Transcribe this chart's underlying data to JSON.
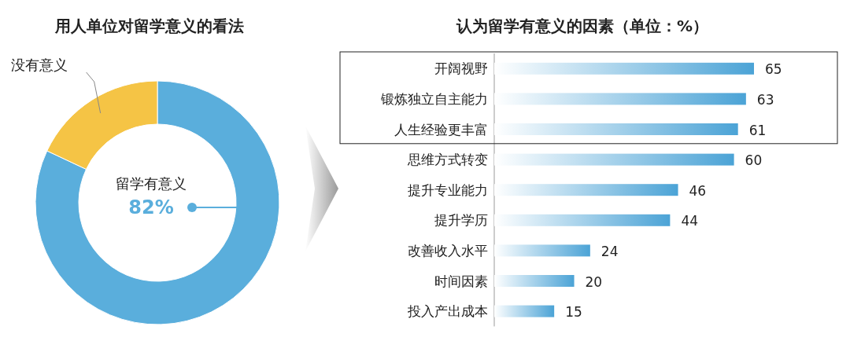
{
  "chart_data": [
    {
      "type": "donut",
      "title": "用人单位对留学意义的看法",
      "categories": [
        "留学有意义",
        "没有意义"
      ],
      "values": [
        82,
        18
      ],
      "colors": [
        "#5aaedc",
        "#f5c445"
      ],
      "value_labels": [
        "82%",
        null
      ]
    },
    {
      "type": "bar",
      "orientation": "horizontal",
      "title": "认为留学有意义的因素（单位：%）",
      "categories": [
        "开阔视野",
        "锻炼独立自主能力",
        "人生经验更丰富",
        "思维方式转变",
        "提升专业能力",
        "提升学历",
        "改善收入水平",
        "时间因素",
        "投入产出成本"
      ],
      "values": [
        65,
        63,
        61,
        60,
        46,
        44,
        24,
        20,
        15
      ],
      "color": "#4ba3d6",
      "data_labels": true
    }
  ]
}
